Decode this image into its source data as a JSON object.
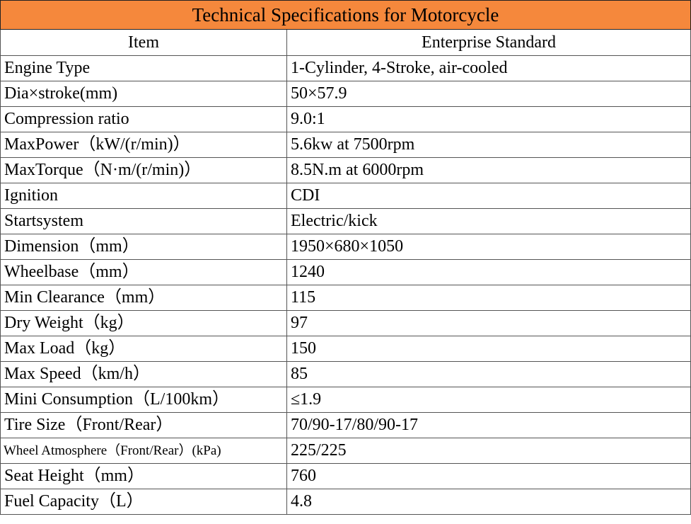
{
  "title": "Technical Specifications for Motorcycle",
  "table": {
    "header": [
      "Item",
      "Enterprise Standard"
    ],
    "rows": [
      [
        "Engine Type",
        "1-Cylinder, 4-Stroke, air-cooled"
      ],
      [
        "Dia×stroke(mm)",
        "50×57.9"
      ],
      [
        "Compression ratio",
        "9.0:1"
      ],
      [
        "MaxPower（kW/(r/min)）",
        "5.6kw at 7500rpm"
      ],
      [
        "MaxTorque（N·m/(r/min)）",
        "8.5N.m at 6000rpm"
      ],
      [
        "Ignition",
        "CDI"
      ],
      [
        "Startsystem",
        "Electric/kick"
      ],
      [
        "Dimension（mm）",
        "1950×680×1050"
      ],
      [
        "Wheelbase（mm）",
        "1240"
      ],
      [
        "Min Clearance（mm）",
        "115"
      ],
      [
        "Dry Weight（kg）",
        "97"
      ],
      [
        "Max Load（kg）",
        "150"
      ],
      [
        "Max Speed（km/h）",
        "85"
      ],
      [
        "Mini Consumption（L/100km）",
        "≤1.9"
      ],
      [
        "Tire Size（Front/Rear）",
        "70/90-17/80/90-17"
      ],
      [
        "Wheel Atmosphere（Front/Rear）(kPa)",
        "225/225"
      ],
      [
        "Seat Height（mm）",
        "760"
      ],
      [
        "Fuel Capacity（L）",
        "4.8"
      ]
    ]
  }
}
